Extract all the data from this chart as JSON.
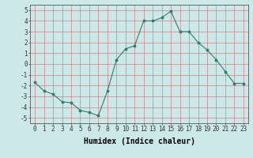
{
  "x": [
    0,
    1,
    2,
    3,
    4,
    5,
    6,
    7,
    8,
    9,
    10,
    11,
    12,
    13,
    14,
    15,
    16,
    17,
    18,
    19,
    20,
    21,
    22,
    23
  ],
  "y": [
    -1.7,
    -2.5,
    -2.8,
    -3.5,
    -3.6,
    -4.3,
    -4.5,
    -4.8,
    -2.5,
    0.4,
    1.4,
    1.7,
    4.0,
    4.0,
    4.3,
    4.9,
    3.0,
    3.0,
    2.0,
    1.3,
    0.4,
    -0.7,
    -1.8,
    -1.8
  ],
  "xlabel": "Humidex (Indice chaleur)",
  "ylabel": "",
  "xlim": [
    -0.5,
    23.5
  ],
  "ylim": [
    -5.5,
    5.5
  ],
  "yticks": [
    -5,
    -4,
    -3,
    -2,
    -1,
    0,
    1,
    2,
    3,
    4,
    5
  ],
  "xticks": [
    0,
    1,
    2,
    3,
    4,
    5,
    6,
    7,
    8,
    9,
    10,
    11,
    12,
    13,
    14,
    15,
    16,
    17,
    18,
    19,
    20,
    21,
    22,
    23
  ],
  "line_color": "#2e7d6e",
  "marker_color": "#2e7d6e",
  "bg_color": "#cce8e8",
  "grid_color": "#d08080",
  "axis_fontsize": 6.5,
  "tick_fontsize": 5.5,
  "xlabel_fontsize": 7.0
}
